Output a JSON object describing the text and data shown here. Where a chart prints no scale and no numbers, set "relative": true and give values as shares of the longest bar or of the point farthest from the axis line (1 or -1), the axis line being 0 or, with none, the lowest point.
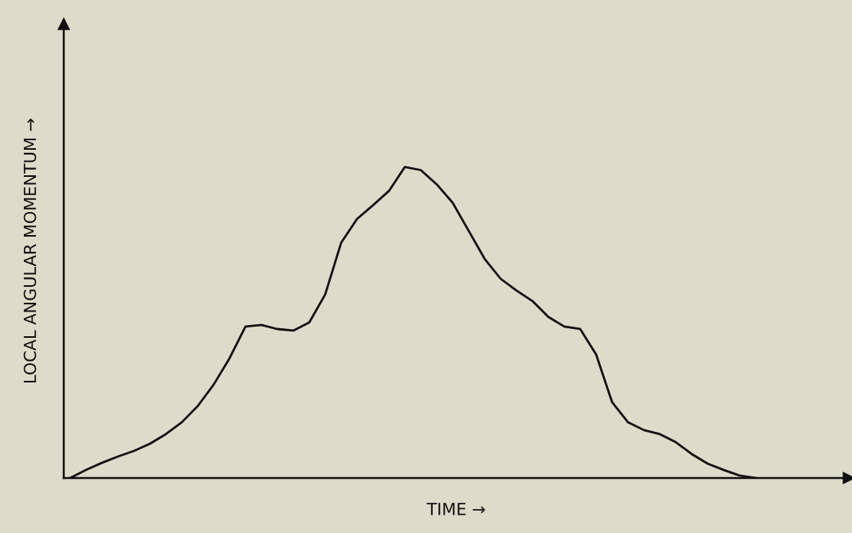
{
  "chart_data": {
    "type": "line",
    "relative": true,
    "xlabel": "TIME →",
    "ylabel": "LOCAL ANGULAR MOMENTUM →",
    "categories": [
      null,
      null,
      null,
      null,
      null,
      null,
      null,
      null,
      null,
      null,
      null,
      null,
      null,
      null,
      null,
      null,
      null,
      null,
      null,
      null,
      null,
      null,
      null,
      null,
      null,
      null,
      null,
      null,
      null,
      null,
      null,
      null,
      null,
      null,
      null,
      null,
      null,
      null,
      null,
      null,
      null,
      null,
      null,
      null
    ],
    "series": [
      {
        "color": "#111111",
        "values": [
          0,
          0.026,
          0.049,
          0.069,
          0.087,
          0.11,
          0.141,
          0.179,
          0.231,
          0.3,
          0.385,
          0.487,
          0.492,
          0.479,
          0.474,
          0.5,
          0.59,
          0.756,
          0.833,
          0.877,
          0.923,
          1,
          0.99,
          0.944,
          0.885,
          0.795,
          0.705,
          0.641,
          0.603,
          0.569,
          0.518,
          0.487,
          0.479,
          0.397,
          0.244,
          0.179,
          0.154,
          0.141,
          0.115,
          0.077,
          0.046,
          0.026,
          0.008,
          0
        ]
      }
    ],
    "marker": "none",
    "line_style": "solid"
  }
}
